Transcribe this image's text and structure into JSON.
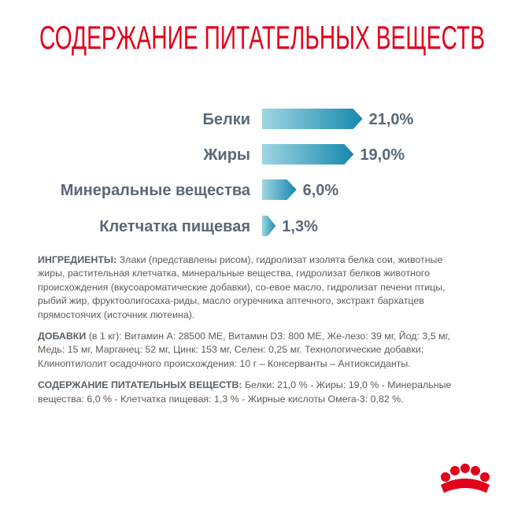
{
  "chart_data": {
    "type": "bar",
    "title": "СОДЕРЖАНИЕ ПИТАТЕЛЬНЫХ ВЕЩЕСТВ",
    "categories": [
      "Белки",
      "Жиры",
      "Минеральные вещества",
      "Клетчатка пищевая"
    ],
    "values": [
      21,
      19,
      6,
      1.3
    ],
    "value_labels": [
      "21,0%",
      "19,0%",
      "6,0%",
      "1,3%"
    ],
    "colors": [
      "#9fd6e3",
      "#1789ad"
    ]
  },
  "paragraphs": [
    {
      "label": "ИНГРЕДИЕНТЫ:",
      "text": "Злаки (представлены рисом), гидролизат изолята белка сои, животные жиры, растительная клетчатка, минеральные вещества, гидролизат белков животного происхождения (вкусоароматические добавки), со-евое масло, гидролизат печени птицы, рыбий жир, фруктоолигосаха-риды, масло огуречника аптечного, экстракт бархатцев прямостоячих (источник лютеина)."
    },
    {
      "label": "ДОБАВКИ",
      "text": "(в 1 кг): Витамин А: 28500 МЕ, Витамин D3: 800 МЕ, Же-лезо: 39 мг, Йод: 3,5 мг, Медь: 15 мг, Марганец: 52 мг, Цинк: 153  мг, Селен: 0,25 мг. Технологические добавки: Клиноптилолит осадочного происхождения: 10 г – Консерванты – Антиоксиданты."
    },
    {
      "label": "СОДЕРЖАНИЕ ПИТАТЕЛЬНЫХ ВЕЩЕСТВ:",
      "text": "Белки: 21,0 % - Жиры: 19,0 % - Минеральные вещества: 6,0 %  - Клетчатка пищевая: 1,3 % - Жирные кислоты Омега-3: 0,82 %."
    }
  ]
}
